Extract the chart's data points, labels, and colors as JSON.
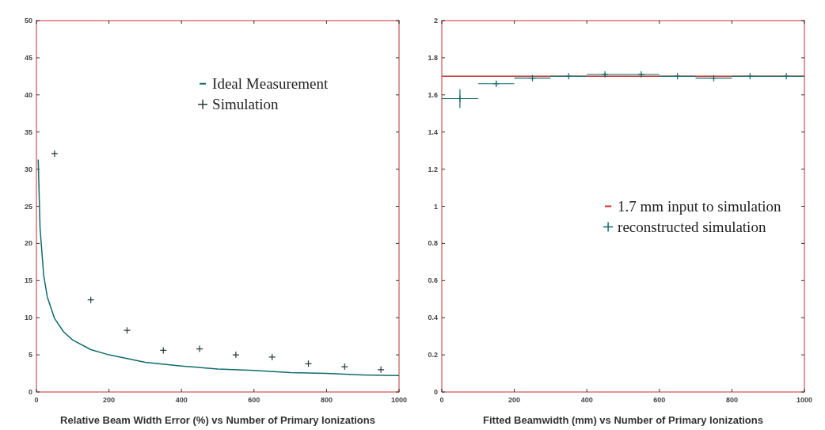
{
  "chart_data": [
    {
      "type": "scatter",
      "xlabel": "Relative Beam Width Error (%) vs Number of Primary Ionizations",
      "xlim": [
        0,
        1000
      ],
      "xticks": [
        0,
        200,
        400,
        600,
        800,
        1000
      ],
      "ylim": [
        0,
        50
      ],
      "yticks": [
        0,
        5,
        10,
        15,
        20,
        25,
        30,
        35,
        40,
        45,
        50
      ],
      "legend": "top right",
      "marker": "cross",
      "line_style": "solid",
      "series": [
        {
          "name": "Ideal Measurement",
          "type": "line",
          "color": "#0f6b6b",
          "x": [
            5,
            10,
            20,
            30,
            50,
            75,
            100,
            150,
            200,
            300,
            400,
            500,
            600,
            700,
            800,
            900,
            1000
          ],
          "values": [
            31.3,
            22.1,
            15.7,
            12.8,
            9.9,
            8.1,
            7.0,
            5.7,
            5.0,
            4.0,
            3.5,
            3.1,
            2.9,
            2.6,
            2.5,
            2.3,
            2.2
          ],
          "marker": "none"
        },
        {
          "name": "Simulation",
          "color": "#2a3a3a",
          "x": [
            50,
            150,
            250,
            350,
            450,
            550,
            650,
            750,
            850,
            950
          ],
          "values": [
            32.1,
            12.4,
            8.3,
            5.6,
            5.8,
            5.0,
            4.7,
            3.8,
            3.4,
            3.0
          ]
        }
      ]
    },
    {
      "type": "scatter",
      "xlabel": "Fitted Beamwidth (mm) vs Number of Primary Ionizations",
      "xlim": [
        0,
        1000
      ],
      "xticks": [
        0,
        200,
        400,
        600,
        800,
        1000
      ],
      "ylim": [
        0,
        2
      ],
      "yticks": [
        0,
        0.2,
        0.4,
        0.6,
        0.8,
        1,
        1.2,
        1.4,
        1.6,
        1.8,
        2
      ],
      "legend": "right",
      "marker": "cross",
      "line_style": "solid",
      "series": [
        {
          "name": "1.7 mm input to simulation",
          "type": "line",
          "color": "#c03030",
          "x": [
            0,
            1000
          ],
          "values": [
            1.7,
            1.7
          ],
          "marker": "none"
        },
        {
          "name": "reconstructed simulation",
          "color": "#0f6b6b",
          "x": [
            50,
            150,
            250,
            350,
            450,
            550,
            650,
            750,
            850,
            950
          ],
          "values": [
            1.58,
            1.66,
            1.69,
            1.7,
            1.71,
            1.71,
            1.7,
            1.69,
            1.7,
            1.7
          ],
          "errors": [
            0.05,
            0.015,
            0.01,
            0.005,
            0.008,
            0.005,
            0.005,
            0.005,
            0.005,
            0.005
          ],
          "xerrors": [
            50,
            50,
            50,
            50,
            50,
            50,
            50,
            50,
            50,
            50
          ]
        }
      ]
    }
  ]
}
